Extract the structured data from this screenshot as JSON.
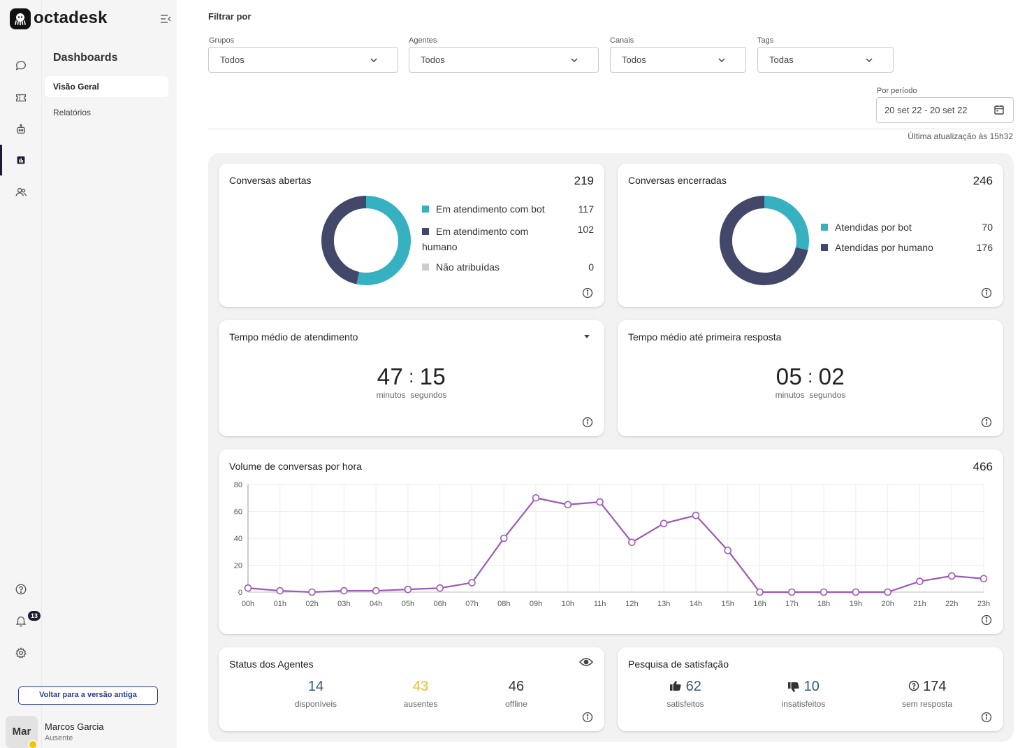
{
  "brand": "octadesk",
  "sidebar": {
    "title": "Dashboards",
    "items": [
      {
        "label": "Visão Geral",
        "active": true
      },
      {
        "label": "Relatórios",
        "active": false
      }
    ],
    "old_version_button": "Voltar para a versão antiga"
  },
  "rail": {
    "icons": [
      "chat-icon",
      "ticket-icon",
      "bot-icon",
      "dashboard-icon",
      "contacts-icon",
      "help-icon",
      "bell-icon",
      "gear-icon"
    ],
    "notifications_count": "13"
  },
  "user": {
    "initials": "Mar",
    "name": "Marcos Garcia",
    "status": "Ausente",
    "status_color": "#f5c400"
  },
  "filters": {
    "title": "Filtrar por",
    "groups": {
      "label": "Grupos",
      "value": "Todos"
    },
    "agents": {
      "label": "Agentes",
      "value": "Todos"
    },
    "channels": {
      "label": "Canais",
      "value": "Todos"
    },
    "tags": {
      "label": "Tags",
      "value": "Todas"
    },
    "period": {
      "label": "Por período",
      "value": "20 set 22 - 20 set 22"
    },
    "last_update": "Última atualização às 15h32"
  },
  "open_conversations": {
    "title": "Conversas abertas",
    "total": "219",
    "legend": [
      {
        "label": "Em atendimento com bot",
        "value": "117",
        "color": "#35b1c0"
      },
      {
        "label_line1": "Em atendimento com",
        "label_line2": "humano",
        "value": "102",
        "color": "#434769"
      },
      {
        "label": "Não atribuídas",
        "value": "0",
        "color": "#cccccc"
      }
    ]
  },
  "closed_conversations": {
    "title": "Conversas encerradas",
    "total": "246",
    "legend": [
      {
        "label": "Atendidas por bot",
        "value": "70",
        "color": "#35b1c0"
      },
      {
        "label": "Atendidas por humano",
        "value": "176",
        "color": "#434769"
      }
    ]
  },
  "avg_service_time": {
    "title": "Tempo médio de atendimento",
    "minutes": "47",
    "seconds": "15",
    "min_label": "minutos",
    "sec_label": "segundos"
  },
  "avg_first_response": {
    "title": "Tempo médio até primeira resposta",
    "minutes": "05",
    "seconds": "02",
    "min_label": "minutos",
    "sec_label": "segundos"
  },
  "chart_data": {
    "type": "line",
    "title": "Volume de conversas por hora",
    "total": "466",
    "x": [
      "00h",
      "01h",
      "02h",
      "03h",
      "04h",
      "05h",
      "06h",
      "07h",
      "08h",
      "09h",
      "10h",
      "11h",
      "12h",
      "13h",
      "14h",
      "15h",
      "16h",
      "17h",
      "18h",
      "19h",
      "20h",
      "21h",
      "22h",
      "23h"
    ],
    "series": [
      {
        "values": [
          3,
          1,
          0,
          1,
          1,
          2,
          3,
          7,
          40,
          70,
          65,
          67,
          37,
          51,
          57,
          31,
          0,
          0,
          0,
          0,
          0,
          8,
          12,
          10
        ],
        "color": "#9b59b6"
      }
    ],
    "ylim": [
      0,
      80
    ],
    "yticks": [
      0,
      20,
      40,
      60,
      80
    ],
    "grid": true
  },
  "agents_status": {
    "title": "Status dos Agentes",
    "stats": [
      {
        "value": "14",
        "label": "disponíveis",
        "color": "#2f5d7c"
      },
      {
        "value": "43",
        "label": "ausentes",
        "color": "#f5b731"
      },
      {
        "value": "46",
        "label": "offline",
        "color": "#333333"
      }
    ]
  },
  "satisfaction": {
    "title": "Pesquisa de satisfação",
    "stats": [
      {
        "value": "62",
        "label": "satisfeitos",
        "icon": "thumbs-up-icon",
        "color": "#2f5d7c"
      },
      {
        "value": "10",
        "label": "insatisfeitos",
        "icon": "thumbs-down-icon",
        "color": "#2f5d7c"
      },
      {
        "value": "174",
        "label": "sem resposta",
        "icon": "question-icon",
        "color": "#333333"
      }
    ]
  }
}
